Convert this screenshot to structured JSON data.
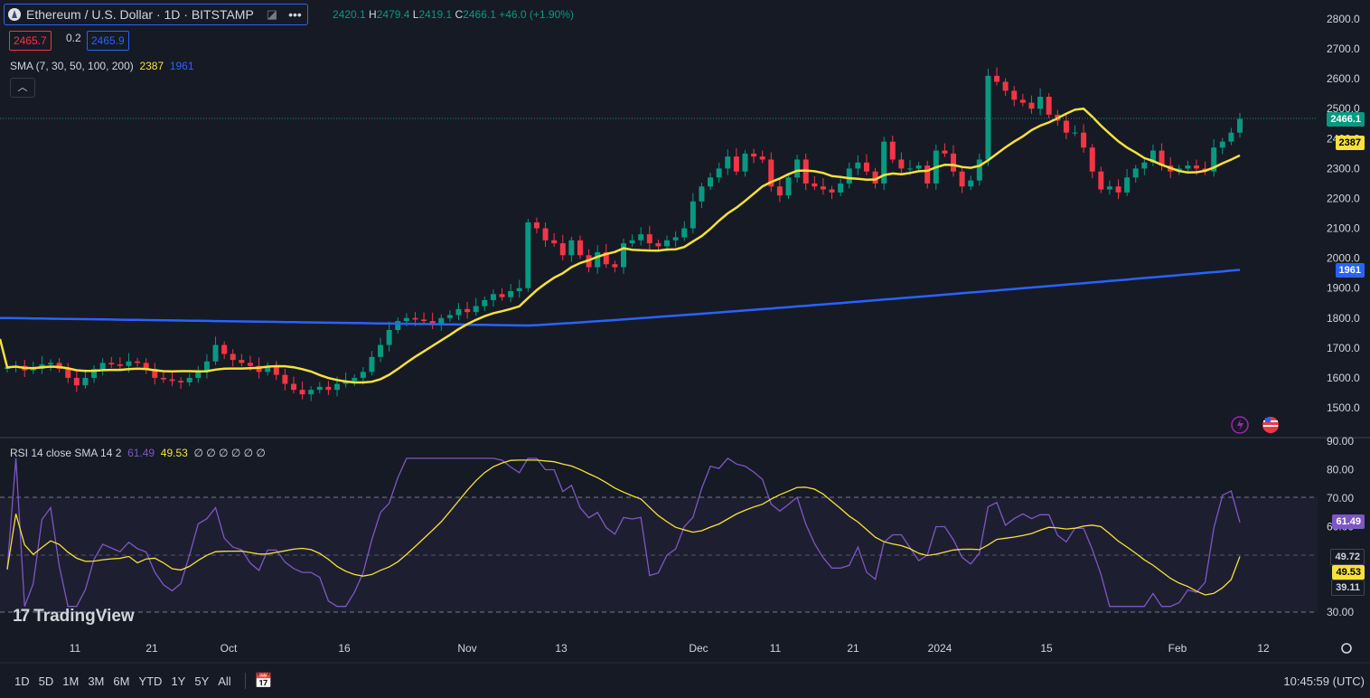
{
  "header": {
    "symbol_title": "Ethereum / U.S. Dollar · 1D · BITSTAMP",
    "ohlc": {
      "o_label": "",
      "o": "2420.1",
      "h_label": "H",
      "h": "2479.4",
      "l_label": "L",
      "l": "2419.1",
      "c_label": "C",
      "c": "2466.1",
      "change": "+46.0 (+1.90%)"
    },
    "sell_price": "2465.7",
    "spread": "0.2",
    "buy_price": "2465.9",
    "sma_legend": "SMA (7, 30, 50, 100, 200)",
    "sma_value_1": "2387",
    "sma_value_2": "1961",
    "collapse_icon": "chevron-up-icon"
  },
  "rsi_legend": {
    "text": "RSI 14 close SMA 14 2",
    "v1": "61.49",
    "v2": "49.53",
    "rest": "∅ ∅ ∅ ∅ ∅ ∅"
  },
  "price_axis": {
    "ticks": [
      "2800.0",
      "2700.0",
      "2600.0",
      "2500.0",
      "2400.0",
      "2300.0",
      "2200.0",
      "2100.0",
      "2000.0",
      "1900.0",
      "1800.0",
      "1700.0",
      "1600.0",
      "1500.0"
    ],
    "last_price": "2466.1",
    "sma_yellow": "2387",
    "sma_blue": "1961"
  },
  "rsi_axis": {
    "ticks": [
      "90.00",
      "80.00",
      "70.00",
      "60.00",
      "30.00"
    ],
    "rsi_value": "61.49",
    "upper": "49.72",
    "sma_value": "49.53",
    "lower": "39.11"
  },
  "time_axis": [
    "11",
    "21",
    "Oct",
    "16",
    "Nov",
    "13",
    "Dec",
    "11",
    "21",
    "2024",
    "15",
    "Feb",
    "12"
  ],
  "range_buttons": [
    "1D",
    "5D",
    "1M",
    "3M",
    "6M",
    "YTD",
    "1Y",
    "5Y",
    "All"
  ],
  "clock": "10:45:59 (UTC)",
  "brand": "TradingView",
  "colors": {
    "up": "#089981",
    "down": "#f23645",
    "sma_yellow": "#f7e13a",
    "sma_blue": "#2962ff",
    "rsi": "#7e57c2",
    "background": "#161a25"
  },
  "chart_data": {
    "type": "candlestick",
    "title": "Ethereum / U.S. Dollar · 1D · BITSTAMP",
    "ylim": [
      1450,
      2850
    ],
    "candles_close": [
      1635,
      1640,
      1625,
      1630,
      1645,
      1650,
      1630,
      1600,
      1575,
      1600,
      1630,
      1650,
      1645,
      1640,
      1655,
      1650,
      1630,
      1600,
      1595,
      1590,
      1585,
      1600,
      1620,
      1655,
      1710,
      1680,
      1660,
      1650,
      1640,
      1620,
      1640,
      1610,
      1580,
      1560,
      1545,
      1560,
      1570,
      1560,
      1580,
      1590,
      1600,
      1620,
      1670,
      1710,
      1760,
      1790,
      1800,
      1795,
      1790,
      1780,
      1800,
      1810,
      1830,
      1820,
      1840,
      1860,
      1880,
      1870,
      1890,
      1900,
      2120,
      2100,
      2060,
      2050,
      2010,
      2060,
      2010,
      1970,
      2020,
      1980,
      1970,
      2050,
      2060,
      2080,
      2050,
      2040,
      2060,
      2070,
      2100,
      2190,
      2240,
      2270,
      2300,
      2340,
      2290,
      2350,
      2340,
      2330,
      2240,
      2210,
      2270,
      2330,
      2250,
      2240,
      2230,
      2220,
      2250,
      2300,
      2320,
      2290,
      2250,
      2390,
      2330,
      2300,
      2300,
      2310,
      2250,
      2360,
      2350,
      2290,
      2240,
      2260,
      2330,
      2610,
      2590,
      2560,
      2530,
      2520,
      2500,
      2540,
      2480,
      2460,
      2420,
      2420,
      2370,
      2290,
      2230,
      2240,
      2220,
      2270,
      2300,
      2320,
      2360,
      2310,
      2290,
      2300,
      2310,
      2300,
      2290,
      2370,
      2390,
      2420,
      2466
    ],
    "sma_yellow_end": 2387,
    "sma_blue_end": 1961,
    "rsi_end": 61.49,
    "rsi_sma_end": 49.53,
    "rsi_levels": [
      70,
      50,
      30
    ]
  }
}
